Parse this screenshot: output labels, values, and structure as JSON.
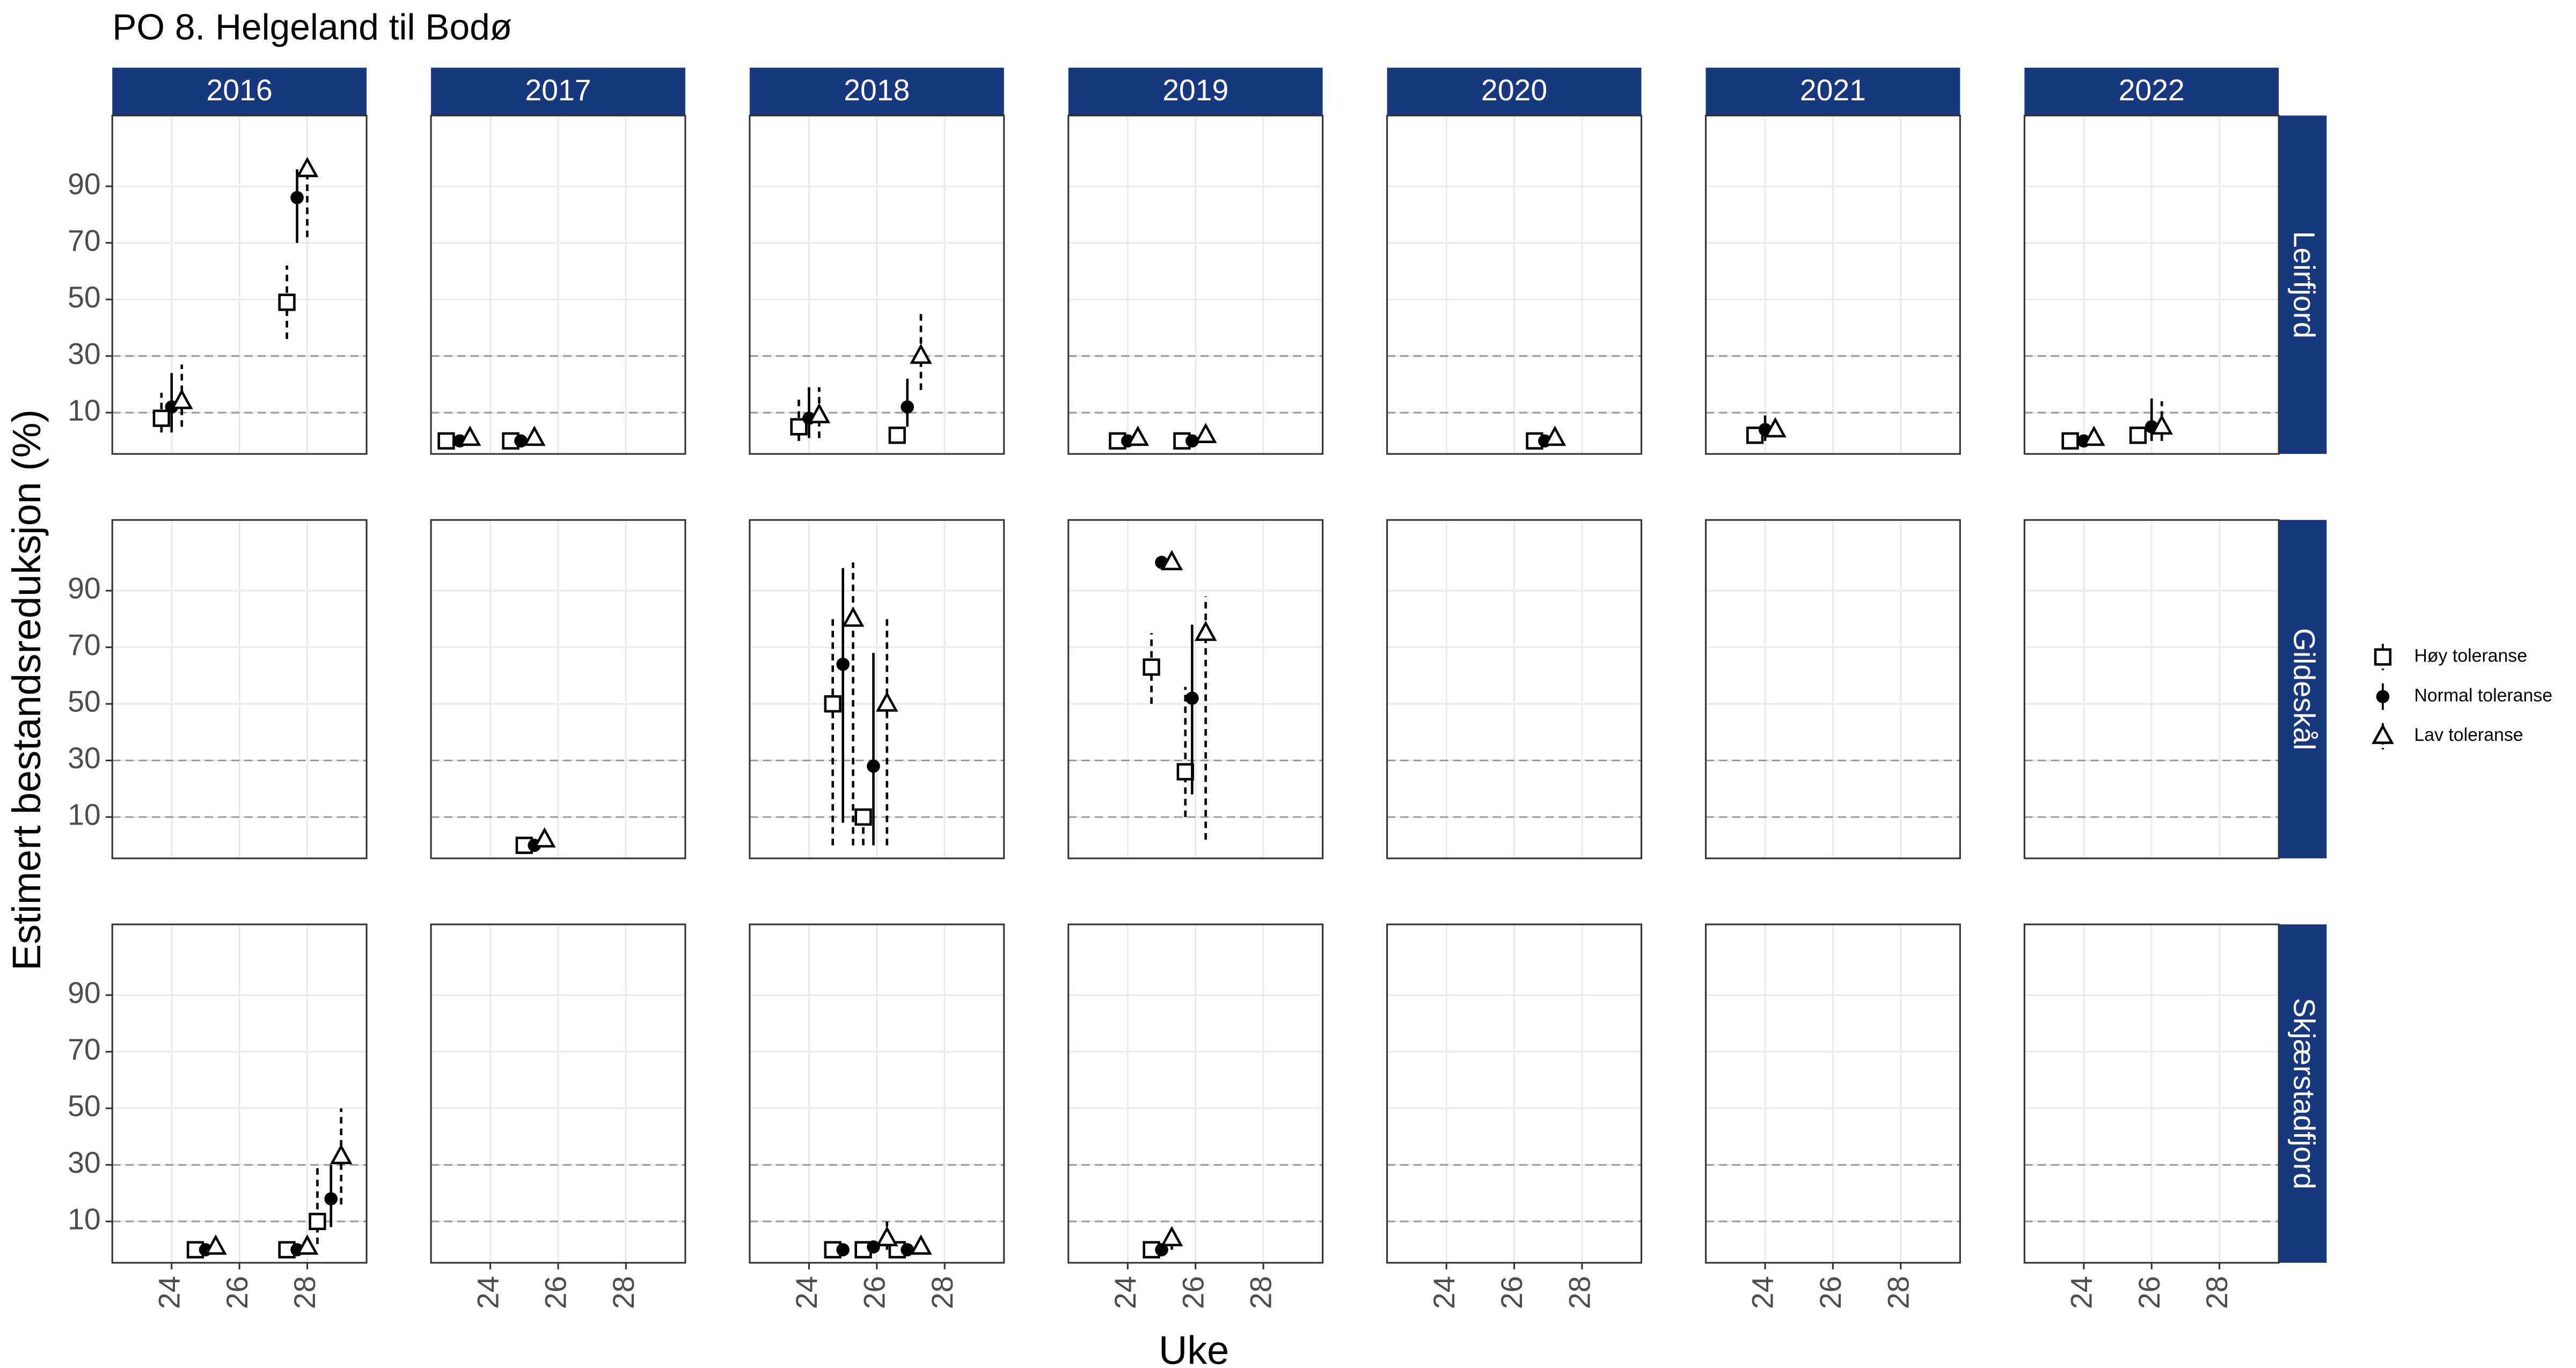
{
  "chart_data": {
    "type": "facet-errorbar",
    "title": "PO 8. Helgeland til Bodø",
    "x_label": "Uke",
    "y_label": "Estimert bestandsreduksjon (%)",
    "years": [
      "2016",
      "2017",
      "2018",
      "2019",
      "2020",
      "2021",
      "2022"
    ],
    "locations": [
      "Leirfjord",
      "Gildeskål",
      "Skjærstadfjord"
    ],
    "series": [
      {
        "name": "Høy toleranse",
        "marker": "square",
        "line": "dashed",
        "color": "#000000"
      },
      {
        "name": "Normal toleranse",
        "marker": "circle",
        "line": "solid",
        "color": "#000000"
      },
      {
        "name": "Lav toleranse",
        "marker": "triangle",
        "line": "dashed",
        "color": "#000000"
      }
    ],
    "xlim": [
      22.25,
      29.75
    ],
    "xticks": [
      24,
      26,
      28
    ],
    "ylim": [
      -4.6,
      115
    ],
    "yticks": [
      10,
      30,
      50,
      70,
      90
    ],
    "reference_lines": [
      10,
      30
    ],
    "grid": true,
    "panels": [
      [
        [
          {
            "x": [
              23.7,
              27.4
            ],
            "y": [
              8,
              49
            ],
            "ymin": [
              3,
              36
            ],
            "ymax": [
              17,
              62
            ]
          },
          {
            "x": [
              24.0,
              27.7
            ],
            "y": [
              12,
              86
            ],
            "ymin": [
              3,
              70
            ],
            "ymax": [
              24,
              96
            ]
          },
          {
            "x": [
              24.3,
              28.0
            ],
            "y": [
              14,
              96
            ],
            "ymin": [
              5,
              72
            ],
            "ymax": [
              27,
              100
            ]
          }
        ],
        [
          {
            "x": [
              22.7,
              24.6
            ],
            "y": [
              0,
              0
            ],
            "ymin": [
              null,
              null
            ],
            "ymax": [
              null,
              null
            ]
          },
          {
            "x": [
              23.1,
              24.9
            ],
            "y": [
              0,
              0
            ],
            "ymin": [
              null,
              null
            ],
            "ymax": [
              null,
              null
            ]
          },
          {
            "x": [
              23.4,
              25.3
            ],
            "y": [
              1,
              1
            ],
            "ymin": [
              null,
              null
            ],
            "ymax": [
              null,
              null
            ]
          }
        ],
        [
          {
            "x": [
              23.7,
              26.6
            ],
            "y": [
              5,
              2
            ],
            "ymin": [
              0,
              null
            ],
            "ymax": [
              15,
              null
            ]
          },
          {
            "x": [
              24.0,
              26.9
            ],
            "y": [
              8,
              12
            ],
            "ymin": [
              1,
              5
            ],
            "ymax": [
              19,
              22
            ]
          },
          {
            "x": [
              24.3,
              27.3
            ],
            "y": [
              9,
              30
            ],
            "ymin": [
              1,
              18
            ],
            "ymax": [
              19,
              46
            ]
          }
        ],
        [
          {
            "x": [
              23.7,
              25.6
            ],
            "y": [
              0,
              0
            ],
            "ymin": [
              null,
              null
            ],
            "ymax": [
              null,
              null
            ]
          },
          {
            "x": [
              24.0,
              25.9
            ],
            "y": [
              0,
              0
            ],
            "ymin": [
              null,
              null
            ],
            "ymax": [
              null,
              null
            ]
          },
          {
            "x": [
              24.3,
              26.3
            ],
            "y": [
              1,
              2
            ],
            "ymin": [
              null,
              null
            ],
            "ymax": [
              null,
              null
            ]
          }
        ],
        [
          {
            "x": [
              26.6
            ],
            "y": [
              0
            ],
            "ymin": [
              null
            ],
            "ymax": [
              null
            ]
          },
          {
            "x": [
              26.9
            ],
            "y": [
              0
            ],
            "ymin": [
              null
            ],
            "ymax": [
              null
            ]
          },
          {
            "x": [
              27.2
            ],
            "y": [
              1
            ],
            "ymin": [
              null
            ],
            "ymax": [
              null
            ]
          }
        ],
        [
          {
            "x": [
              23.7
            ],
            "y": [
              2
            ],
            "ymin": [
              null
            ],
            "ymax": [
              null
            ]
          },
          {
            "x": [
              24.0
            ],
            "y": [
              4
            ],
            "ymin": [
              0
            ],
            "ymax": [
              9
            ]
          },
          {
            "x": [
              24.3
            ],
            "y": [
              4
            ],
            "ymin": [
              null
            ],
            "ymax": [
              null
            ]
          }
        ],
        [
          {
            "x": [
              23.6,
              25.6
            ],
            "y": [
              0,
              2
            ],
            "ymin": [
              null,
              null
            ],
            "ymax": [
              null,
              null
            ]
          },
          {
            "x": [
              24.0,
              26.0
            ],
            "y": [
              0,
              5
            ],
            "ymin": [
              null,
              0
            ],
            "ymax": [
              null,
              15
            ]
          },
          {
            "x": [
              24.3,
              26.3
            ],
            "y": [
              1,
              5
            ],
            "ymin": [
              null,
              0
            ],
            "ymax": [
              null,
              14
            ]
          }
        ]
      ],
      [
        [],
        [
          {
            "x": [
              25.0
            ],
            "y": [
              0
            ],
            "ymin": [
              null
            ],
            "ymax": [
              null
            ]
          },
          {
            "x": [
              25.3
            ],
            "y": [
              0
            ],
            "ymin": [
              null
            ],
            "ymax": [
              null
            ]
          },
          {
            "x": [
              25.6
            ],
            "y": [
              2
            ],
            "ymin": [
              null
            ],
            "ymax": [
              null
            ]
          }
        ],
        [
          {
            "x": [
              24.7,
              25.6
            ],
            "y": [
              50,
              10
            ],
            "ymin": [
              0,
              0
            ],
            "ymax": [
              80,
              13
            ]
          },
          {
            "x": [
              25.0,
              25.9
            ],
            "y": [
              64,
              28
            ],
            "ymin": [
              8,
              0
            ],
            "ymax": [
              98,
              68
            ]
          },
          {
            "x": [
              25.3,
              26.3
            ],
            "y": [
              80,
              50
            ],
            "ymin": [
              0,
              0
            ],
            "ymax": [
              100,
              80
            ]
          }
        ],
        [
          {
            "x": [
              24.7,
              25.7
            ],
            "y": [
              63,
              26
            ],
            "ymin": [
              50,
              10
            ],
            "ymax": [
              75,
              56
            ]
          },
          {
            "x": [
              25.0,
              25.9
            ],
            "y": [
              100,
              52
            ],
            "ymin": [
              null,
              18
            ],
            "ymax": [
              null,
              78
            ]
          },
          {
            "x": [
              25.3,
              26.3
            ],
            "y": [
              100,
              75
            ],
            "ymin": [
              null,
              2
            ],
            "ymax": [
              null,
              88
            ]
          }
        ],
        [],
        [],
        []
      ],
      [
        [
          {
            "x": [
              24.7,
              27.4,
              28.3
            ],
            "y": [
              0,
              0,
              10
            ],
            "ymin": [
              null,
              null,
              2
            ],
            "ymax": [
              null,
              null,
              30
            ]
          },
          {
            "x": [
              25.0,
              27.7,
              28.7
            ],
            "y": [
              0,
              0,
              18
            ],
            "ymin": [
              null,
              null,
              8
            ],
            "ymax": [
              null,
              null,
              30
            ]
          },
          {
            "x": [
              25.3,
              28.0,
              29.0
            ],
            "y": [
              1,
              1,
              33
            ],
            "ymin": [
              null,
              null,
              16
            ],
            "ymax": [
              null,
              null,
              50
            ]
          }
        ],
        [],
        [
          {
            "x": [
              24.7,
              25.6,
              26.6
            ],
            "y": [
              0,
              0,
              0
            ],
            "ymin": [
              null,
              null,
              null
            ],
            "ymax": [
              null,
              null,
              null
            ]
          },
          {
            "x": [
              25.0,
              25.9,
              26.9
            ],
            "y": [
              0,
              1,
              0
            ],
            "ymin": [
              null,
              null,
              null
            ],
            "ymax": [
              null,
              null,
              null
            ]
          },
          {
            "x": [
              26.3,
              27.3
            ],
            "y": [
              4,
              1
            ],
            "ymin": [
              0,
              null
            ],
            "ymax": [
              10,
              null
            ]
          }
        ],
        [
          {
            "x": [
              24.7
            ],
            "y": [
              0
            ],
            "ymin": [
              null
            ],
            "ymax": [
              null
            ]
          },
          {
            "x": [
              25.0
            ],
            "y": [
              0
            ],
            "ymin": [
              null
            ],
            "ymax": [
              null
            ]
          },
          {
            "x": [
              25.3
            ],
            "y": [
              4
            ],
            "ymin": [
              0
            ],
            "ymax": [
              7
            ]
          }
        ],
        [],
        [],
        []
      ]
    ]
  }
}
